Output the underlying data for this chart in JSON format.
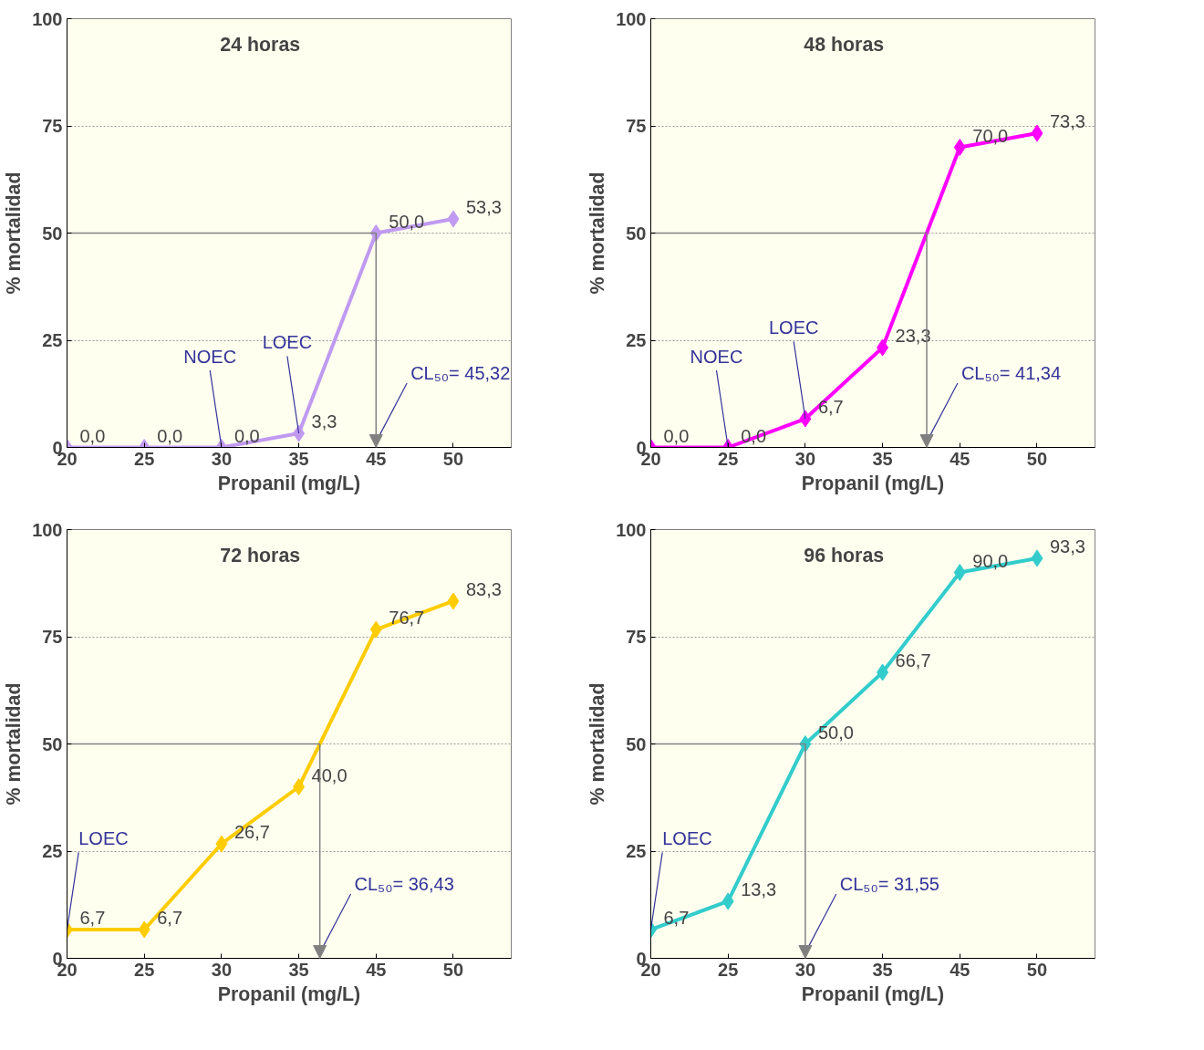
{
  "chart_data": [
    {
      "type": "line",
      "title": "24 horas",
      "xlabel": "Propanil (mg/L)",
      "ylabel": "% mortalidad",
      "categories": [
        "20",
        "25",
        "30",
        "35",
        "45",
        "50"
      ],
      "ylim": [
        0,
        100
      ],
      "yticks": [
        0,
        25,
        50,
        75,
        100
      ],
      "grid": "y",
      "marker": "diamond",
      "line_style": "solid",
      "series": [
        {
          "color": "#c09af0",
          "values": [
            0,
            0,
            0,
            3.3,
            50,
            53.3
          ],
          "value_labels": [
            "0,0",
            "0,0",
            "0,0",
            "3,3",
            "50,0",
            "53,3"
          ]
        }
      ],
      "ref_lines": [
        {
          "axis": "y",
          "value": 50,
          "color": "#808080"
        }
      ],
      "annotations": [
        {
          "text": "NOEC",
          "x": "30",
          "y": 0
        },
        {
          "text": "LOEC",
          "x": "35",
          "y": 3.3
        },
        "CL₅₀= 45,32"
      ]
    },
    {
      "type": "line",
      "title": "48 horas",
      "xlabel": "Propanil (mg/L)",
      "ylabel": "% mortalidad",
      "categories": [
        "20",
        "25",
        "30",
        "35",
        "45",
        "50"
      ],
      "ylim": [
        0,
        100
      ],
      "yticks": [
        0,
        25,
        50,
        75,
        100
      ],
      "grid": "y",
      "marker": "diamond",
      "line_style": "solid",
      "series": [
        {
          "color": "#ff00ff",
          "values": [
            0,
            0,
            6.7,
            23.3,
            70,
            73.3
          ],
          "value_labels": [
            "0,0",
            "0,0",
            "6,7",
            "23,3",
            "70,0",
            "73,3"
          ]
        }
      ],
      "ref_lines": [
        {
          "axis": "y",
          "value": 50,
          "color": "#808080"
        }
      ],
      "annotations": [
        {
          "text": "NOEC",
          "x": "25",
          "y": 0
        },
        {
          "text": "LOEC",
          "x": "30",
          "y": 6.7
        },
        "CL₅₀= 41,34"
      ]
    },
    {
      "type": "line",
      "title": "72 horas",
      "xlabel": "Propanil (mg/L)",
      "ylabel": "% mortalidad",
      "categories": [
        "20",
        "25",
        "30",
        "35",
        "45",
        "50"
      ],
      "ylim": [
        0,
        100
      ],
      "yticks": [
        0,
        25,
        50,
        75,
        100
      ],
      "grid": "y",
      "marker": "diamond",
      "line_style": "solid",
      "series": [
        {
          "color": "#ffcc00",
          "values": [
            6.7,
            6.7,
            26.7,
            40,
            76.7,
            83.3
          ],
          "value_labels": [
            "6,7",
            "6,7",
            "26,7",
            "40,0",
            "76,7",
            "83,3"
          ]
        }
      ],
      "ref_lines": [
        {
          "axis": "y",
          "value": 50,
          "color": "#808080"
        }
      ],
      "annotations": [
        {
          "text": "LOEC",
          "x": "20",
          "y": 6.7
        },
        "CL₅₀= 36,43"
      ]
    },
    {
      "type": "line",
      "title": "96 horas",
      "xlabel": "Propanil (mg/L)",
      "ylabel": "% mortalidad",
      "categories": [
        "20",
        "25",
        "30",
        "35",
        "45",
        "50"
      ],
      "ylim": [
        0,
        100
      ],
      "yticks": [
        0,
        25,
        50,
        75,
        100
      ],
      "grid": "y",
      "marker": "diamond",
      "line_style": "solid",
      "series": [
        {
          "color": "#33cccc",
          "values": [
            6.7,
            13.3,
            50,
            66.7,
            90,
            93.3
          ],
          "value_labels": [
            "6,7",
            "13,3",
            "50,0",
            "66,7",
            "90,0",
            "93,3"
          ]
        }
      ],
      "ref_lines": [
        {
          "axis": "y",
          "value": 50,
          "color": "#808080"
        }
      ],
      "annotations": [
        {
          "text": "LOEC",
          "x": "20",
          "y": 6.7
        },
        "CL₅₀= 31,55"
      ]
    }
  ]
}
